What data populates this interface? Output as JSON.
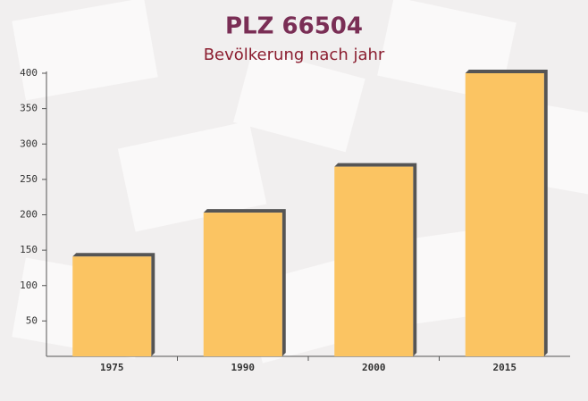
{
  "chart_data": {
    "type": "bar",
    "title": "PLZ 66504",
    "subtitle": "Bevölkerung nach jahr",
    "categories": [
      "1975",
      "1990",
      "2000",
      "2015"
    ],
    "values": [
      141,
      203,
      268,
      400
    ],
    "color": "#fbc462",
    "ylim": [
      0,
      400
    ],
    "yticks": [
      50,
      100,
      150,
      200,
      250,
      300,
      350,
      400
    ],
    "grid": false
  }
}
